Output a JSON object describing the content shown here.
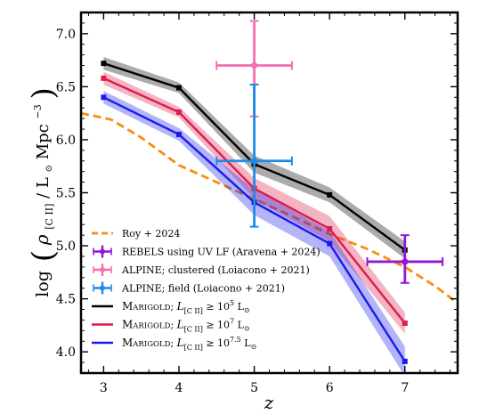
{
  "chart_data": {
    "type": "line",
    "xlabel": "z",
    "ylabel": "log (ρ[C II] / L⊙ Mpc⁻³)",
    "xlim": [
      2.7,
      7.7
    ],
    "ylim": [
      3.8,
      7.2
    ],
    "xticks": [
      3,
      4,
      5,
      6,
      7
    ],
    "yticks": [
      4.0,
      4.5,
      5.0,
      5.5,
      6.0,
      6.5,
      7.0
    ],
    "grid": false,
    "legend_position": "lower-left",
    "colors": {
      "black": "#000000",
      "red": "#dc1c4c",
      "blue": "#1a1aee",
      "orange": "#f5900f",
      "purple": "#9216d6",
      "pink": "#f66fb0",
      "sky": "#1e8be6"
    },
    "series": [
      {
        "name": "MARIGOLD; L[C II] ≥ 10^5 L⊙",
        "legend_label": "Marigold",
        "threshold": "≥ 10",
        "exponent": "5",
        "color": "#000000",
        "x": [
          3,
          4,
          5,
          6,
          7
        ],
        "y": [
          6.72,
          6.49,
          5.77,
          5.48,
          4.96
        ],
        "band_halfwidth": [
          0.06,
          0.05,
          0.08,
          0.07,
          0.08
        ]
      },
      {
        "name": "MARIGOLD; L[C II] ≥ 10^7 L⊙",
        "legend_label": "Marigold",
        "threshold": "≥ 10",
        "exponent": "7",
        "color": "#dc1c4c",
        "x": [
          3,
          4,
          5,
          6,
          7
        ],
        "y": [
          6.58,
          6.26,
          5.54,
          5.16,
          4.27
        ],
        "band_halfwidth": [
          0.06,
          0.05,
          0.1,
          0.12,
          0.1
        ]
      },
      {
        "name": "MARIGOLD; L[C II] ≥ 10^7.5 L⊙",
        "legend_label": "Marigold",
        "threshold": "≥ 10",
        "exponent": "7.5",
        "color": "#1a1aee",
        "x": [
          3,
          4,
          5,
          6,
          7
        ],
        "y": [
          6.4,
          6.05,
          5.41,
          5.02,
          3.91
        ],
        "band_halfwidth": [
          0.06,
          0.06,
          0.12,
          0.12,
          0.14
        ]
      },
      {
        "name": "Roy + 2024",
        "color": "#f5900f",
        "style": "dashed",
        "x": [
          2.7,
          3.1,
          3.5,
          4.0,
          4.5,
          5.0,
          5.5,
          6.0,
          6.5,
          7.0,
          7.4,
          7.7
        ],
        "y": [
          6.25,
          6.19,
          6.02,
          5.76,
          5.6,
          5.44,
          5.28,
          5.11,
          4.97,
          4.8,
          4.62,
          4.46
        ]
      }
    ],
    "points": [
      {
        "name": "REBELS using UV LF (Aravena + 2024)",
        "color": "#9216d6",
        "x": 7.0,
        "y": 4.85,
        "xerr": [
          0.5,
          0.5
        ],
        "yerr": [
          0.2,
          0.25
        ]
      },
      {
        "name": "ALPINE; clustered (Loiacono + 2021)",
        "color": "#f66fb0",
        "x": 5.0,
        "y": 6.7,
        "xerr": [
          0.5,
          0.5
        ],
        "yerr": [
          0.48,
          0.42
        ]
      },
      {
        "name": "ALPINE; field (Loiacono + 2021)",
        "color": "#1e8be6",
        "x": 5.0,
        "y": 5.8,
        "xerr": [
          0.5,
          0.5
        ],
        "yerr": [
          0.62,
          0.72
        ]
      }
    ]
  }
}
